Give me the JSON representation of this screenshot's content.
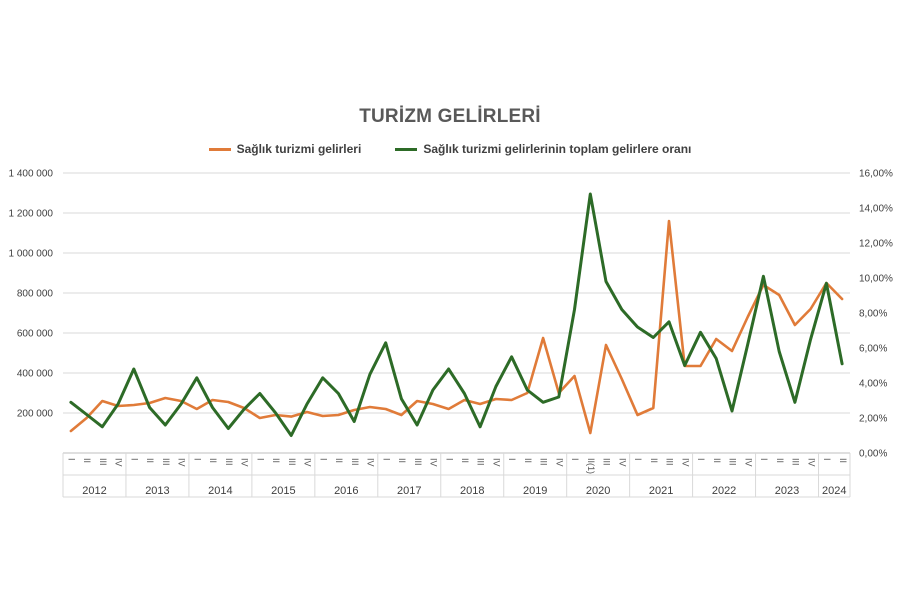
{
  "chart_data": {
    "type": "line",
    "title": "TURİZM GELİRLERİ",
    "legend_position": "top",
    "grid": true,
    "years": [
      "2012",
      "2013",
      "2014",
      "2015",
      "2016",
      "2017",
      "2018",
      "2019",
      "2020",
      "2021",
      "2022",
      "2023",
      "2024"
    ],
    "year_quarter_counts": [
      4,
      4,
      4,
      4,
      4,
      4,
      4,
      4,
      4,
      4,
      4,
      4,
      2
    ],
    "quarter_labels": [
      "I",
      "II",
      "III",
      "IV",
      "I",
      "II",
      "III",
      "IV",
      "I",
      "II",
      "III",
      "IV",
      "I",
      "II",
      "III",
      "IV",
      "I",
      "II",
      "III",
      "IV",
      "I",
      "II",
      "III",
      "IV",
      "I",
      "II",
      "III",
      "IV",
      "I",
      "II",
      "III",
      "IV",
      "I",
      "II(1)",
      "III",
      "IV",
      "I",
      "II",
      "III",
      "IV",
      "I",
      "II",
      "III",
      "IV",
      "I",
      "II",
      "III",
      "IV",
      "I",
      "II"
    ],
    "y_left": {
      "min": 0,
      "max": 1400000,
      "ticks": [
        "1 400 000",
        "1 200 000",
        "1 000 000",
        "800 000",
        "600 000",
        "400 000",
        "200 000"
      ],
      "tick_values": [
        1400000,
        1200000,
        1000000,
        800000,
        600000,
        400000,
        200000
      ]
    },
    "y_right": {
      "min": 0,
      "max": 16,
      "ticks": [
        "16,00%",
        "14,00%",
        "12,00%",
        "10,00%",
        "8,00%",
        "6,00%",
        "4,00%",
        "2,00%",
        "0,00%"
      ],
      "tick_values": [
        16,
        14,
        12,
        10,
        8,
        6,
        4,
        2,
        0
      ]
    },
    "series": [
      {
        "name": "Sağlık turizmi gelirleri",
        "axis": "left",
        "color": "#E07B39",
        "values": [
          110000,
          175000,
          260000,
          235000,
          240000,
          250000,
          275000,
          260000,
          220000,
          265000,
          255000,
          225000,
          175000,
          190000,
          182000,
          205000,
          185000,
          190000,
          215000,
          230000,
          220000,
          190000,
          260000,
          245000,
          220000,
          265000,
          245000,
          270000,
          265000,
          300000,
          575000,
          300000,
          385000,
          100000,
          540000,
          370000,
          190000,
          225000,
          1160000,
          435000,
          435000,
          570000,
          510000,
          680000,
          840000,
          790000,
          640000,
          720000,
          850000,
          770000
        ]
      },
      {
        "name": "Sağlık turizmi gelirlerinin toplam gelirlere oranı",
        "axis": "right",
        "color": "#2D6B27",
        "values": [
          2.9,
          2.2,
          1.5,
          2.8,
          4.8,
          2.6,
          1.6,
          2.8,
          4.3,
          2.6,
          1.4,
          2.5,
          3.4,
          2.3,
          1.0,
          2.8,
          4.3,
          3.4,
          1.8,
          4.5,
          6.3,
          3.1,
          1.6,
          3.6,
          4.8,
          3.4,
          1.5,
          3.8,
          5.5,
          3.6,
          2.9,
          3.2,
          8.2,
          14.8,
          9.8,
          8.2,
          7.2,
          6.6,
          7.5,
          5.0,
          6.9,
          5.4,
          2.4,
          6.2,
          10.1,
          5.8,
          2.9,
          6.5,
          9.7,
          5.1
        ]
      }
    ]
  }
}
